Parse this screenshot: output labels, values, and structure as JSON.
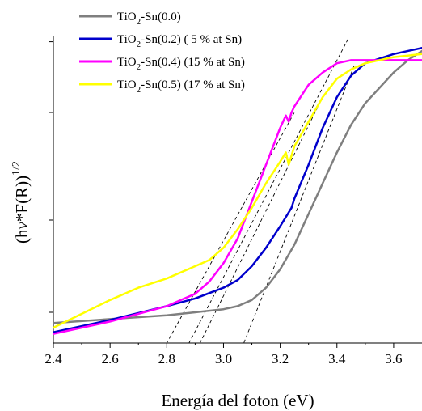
{
  "chart_data": {
    "type": "line",
    "xlabel": "Energía del foton (eV)",
    "ylabel": "(hν*F(R))^1/2",
    "ylabel_parts": {
      "open": "(h",
      "nu": "ν",
      "mid": "*F(R))",
      "sup": "1/2"
    },
    "xlim": [
      2.4,
      3.7
    ],
    "ylim": [
      0,
      1
    ],
    "grid": false,
    "legend_position": "top-left",
    "x_ticks": [
      {
        "value": 2.4,
        "label": "2.4"
      },
      {
        "value": 2.6,
        "label": "2.6"
      },
      {
        "value": 2.8,
        "label": "2.8"
      },
      {
        "value": 3.0,
        "label": "3.0"
      },
      {
        "value": 3.2,
        "label": "3.2"
      },
      {
        "value": 3.4,
        "label": "3.4"
      },
      {
        "value": 3.6,
        "label": "3.6"
      }
    ],
    "y_ticks": [
      0.1,
      0.4,
      0.75,
      0.98
    ],
    "series": [
      {
        "name": "TiO2-Sn(0.0)",
        "legend": {
          "pre": "TiO",
          "sub": "2",
          "post": "-Sn(0.0)"
        },
        "color": "#7f7f7f",
        "x": [
          2.4,
          2.6,
          2.8,
          2.9,
          3.0,
          3.05,
          3.1,
          3.15,
          3.2,
          3.25,
          3.3,
          3.35,
          3.4,
          3.45,
          3.5,
          3.55,
          3.6,
          3.65,
          3.7
        ],
        "y": [
          0.065,
          0.078,
          0.09,
          0.1,
          0.11,
          0.12,
          0.14,
          0.18,
          0.24,
          0.32,
          0.42,
          0.52,
          0.62,
          0.71,
          0.78,
          0.83,
          0.88,
          0.92,
          0.95
        ]
      },
      {
        "name": "TiO2-Sn(0.2) ( 5 % at Sn)",
        "legend": {
          "pre": "TiO",
          "sub": "2",
          "post": "-Sn(0.2)  ( 5 % at Sn)"
        },
        "color": "#0000cc",
        "x": [
          2.4,
          2.6,
          2.8,
          2.9,
          3.0,
          3.05,
          3.1,
          3.15,
          3.2,
          3.24,
          3.25,
          3.3,
          3.35,
          3.4,
          3.45,
          3.5,
          3.6,
          3.7
        ],
        "y": [
          0.035,
          0.075,
          0.12,
          0.145,
          0.18,
          0.205,
          0.25,
          0.31,
          0.38,
          0.44,
          0.47,
          0.58,
          0.7,
          0.8,
          0.87,
          0.91,
          0.94,
          0.96
        ]
      },
      {
        "name": "TiO2-Sn(0.4) (15 % at Sn)",
        "legend": {
          "pre": "TiO",
          "sub": "2",
          "post": "-Sn(0.4)  (15 % at Sn)"
        },
        "color": "#ff00ff",
        "x": [
          2.4,
          2.6,
          2.8,
          2.9,
          2.95,
          3.0,
          3.05,
          3.1,
          3.15,
          3.2,
          3.22,
          3.23,
          3.24,
          3.25,
          3.3,
          3.35,
          3.4,
          3.45,
          3.5,
          3.6,
          3.7
        ],
        "y": [
          0.03,
          0.07,
          0.12,
          0.16,
          0.2,
          0.26,
          0.34,
          0.46,
          0.58,
          0.7,
          0.74,
          0.72,
          0.75,
          0.77,
          0.84,
          0.88,
          0.91,
          0.92,
          0.92,
          0.92,
          0.92
        ]
      },
      {
        "name": "TiO2-Sn(0.5) (17 % at Sn)",
        "legend": {
          "pre": "TiO",
          "sub": "2",
          "post": "-Sn(0.5)  (17 % at Sn)"
        },
        "color": "#ffff00",
        "x": [
          2.4,
          2.5,
          2.6,
          2.7,
          2.8,
          2.9,
          2.95,
          3.0,
          3.05,
          3.1,
          3.15,
          3.2,
          3.22,
          3.23,
          3.24,
          3.25,
          3.3,
          3.35,
          3.4,
          3.45,
          3.5,
          3.6,
          3.7
        ],
        "y": [
          0.05,
          0.095,
          0.14,
          0.18,
          0.21,
          0.25,
          0.27,
          0.31,
          0.37,
          0.44,
          0.52,
          0.59,
          0.62,
          0.58,
          0.61,
          0.64,
          0.72,
          0.8,
          0.86,
          0.89,
          0.91,
          0.93,
          0.94
        ]
      }
    ],
    "tangent_lines": [
      {
        "x": [
          2.77,
          3.25
        ],
        "y": [
          -0.05,
          0.75
        ]
      },
      {
        "x": [
          2.85,
          3.44
        ],
        "y": [
          -0.05,
          0.99
        ]
      },
      {
        "x": [
          2.89,
          3.35
        ],
        "y": [
          -0.05,
          0.8
        ]
      },
      {
        "x": [
          3.05,
          3.46
        ],
        "y": [
          -0.05,
          0.9
        ]
      }
    ]
  }
}
